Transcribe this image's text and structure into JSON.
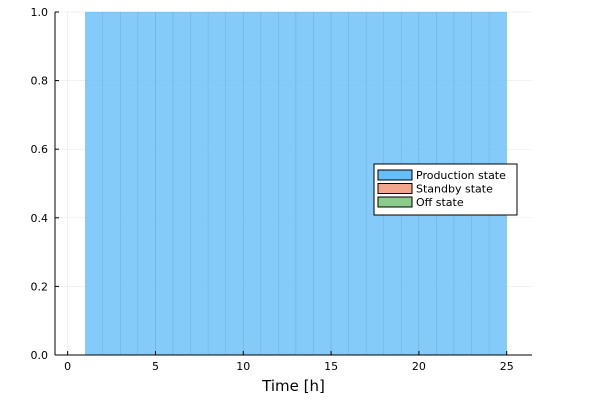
{
  "chart_data": {
    "type": "bar",
    "stacked": true,
    "xlabel": "Time [h]",
    "ylabel": "",
    "title": "",
    "xlim": [
      -0.72,
      26.44
    ],
    "ylim": [
      0,
      1
    ],
    "x_ticks": [
      0,
      5,
      10,
      15,
      20,
      25
    ],
    "y_ticks": [
      0.0,
      0.2,
      0.4,
      0.6,
      0.8,
      1.0
    ],
    "y_tick_labels": [
      "0.0",
      "0.2",
      "0.4",
      "0.6",
      "0.8",
      "1.0"
    ],
    "grid": true,
    "legend_position": "right",
    "x": [
      1,
      2,
      3,
      4,
      5,
      6,
      7,
      8,
      9,
      10,
      11,
      12,
      13,
      14,
      15,
      16,
      17,
      18,
      19,
      20,
      21,
      22,
      23,
      24
    ],
    "series": [
      {
        "name": "Production state",
        "color": "#66bef9",
        "values": [
          1,
          1,
          1,
          1,
          1,
          1,
          1,
          1,
          1,
          1,
          1,
          1,
          1,
          1,
          1,
          1,
          1,
          1,
          1,
          1,
          1,
          1,
          1,
          1
        ]
      },
      {
        "name": "Standby state",
        "color": "#f2a68e",
        "values": [
          0,
          0,
          0,
          0,
          0,
          0,
          0,
          0,
          0,
          0,
          0,
          0,
          0,
          0,
          0,
          0,
          0,
          0,
          0,
          0,
          0,
          0,
          0,
          0
        ]
      },
      {
        "name": "Off state",
        "color": "#8bcb8b",
        "values": [
          0,
          0,
          0,
          0,
          0,
          0,
          0,
          0,
          0,
          0,
          0,
          0,
          0,
          0,
          0,
          0,
          0,
          0,
          0,
          0,
          0,
          0,
          0,
          0
        ]
      }
    ]
  }
}
